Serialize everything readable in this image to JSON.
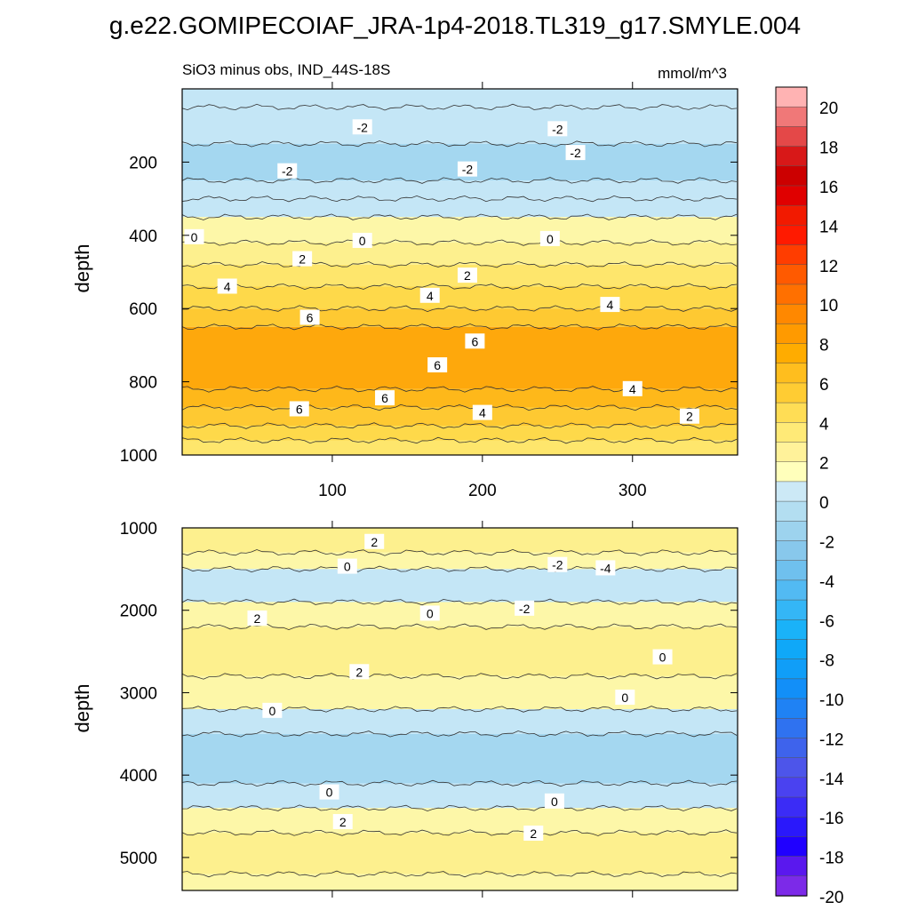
{
  "title": "g.e22.GOMIPECOIAF_JRA-1p4-2018.TL319_g17.SMYLE.004",
  "chart_data": [
    {
      "type": "heatmap",
      "subtitle": "SiO3 minus obs, IND_44S-18S",
      "units": "mmol/m^3",
      "xlabel": "",
      "ylabel": "depth",
      "xlim": [
        0,
        370
      ],
      "ylim": [
        1000,
        0
      ],
      "xticks": [
        "100",
        "200",
        "300"
      ],
      "yticks": [
        "200",
        "400",
        "600",
        "800",
        "1000"
      ],
      "bands": [
        {
          "top": 0,
          "bottom": 50,
          "value": -1
        },
        {
          "top": 50,
          "bottom": 150,
          "value": -1
        },
        {
          "top": 150,
          "bottom": 250,
          "value": -2
        },
        {
          "top": 250,
          "bottom": 300,
          "value": -1
        },
        {
          "top": 300,
          "bottom": 350,
          "value": -0.5
        },
        {
          "top": 350,
          "bottom": 420,
          "value": 0.5
        },
        {
          "top": 420,
          "bottom": 480,
          "value": 1.5
        },
        {
          "top": 480,
          "bottom": 540,
          "value": 2.5
        },
        {
          "top": 540,
          "bottom": 600,
          "value": 3.5
        },
        {
          "top": 600,
          "bottom": 650,
          "value": 4.5
        },
        {
          "top": 650,
          "bottom": 820,
          "value": 6.5
        },
        {
          "top": 820,
          "bottom": 870,
          "value": 5.5
        },
        {
          "top": 870,
          "bottom": 920,
          "value": 4.5
        },
        {
          "top": 920,
          "bottom": 960,
          "value": 3.5
        },
        {
          "top": 960,
          "bottom": 1000,
          "value": 2.5
        }
      ],
      "contour_labels": [
        {
          "x": 120,
          "y": 105,
          "text": "-2"
        },
        {
          "x": 250,
          "y": 110,
          "text": "-2"
        },
        {
          "x": 70,
          "y": 225,
          "text": "-2"
        },
        {
          "x": 190,
          "y": 220,
          "text": "-2"
        },
        {
          "x": 262,
          "y": 175,
          "text": "-2"
        },
        {
          "x": 8,
          "y": 405,
          "text": "0"
        },
        {
          "x": 120,
          "y": 415,
          "text": "0"
        },
        {
          "x": 245,
          "y": 410,
          "text": "0"
        },
        {
          "x": 80,
          "y": 465,
          "text": "2"
        },
        {
          "x": 190,
          "y": 510,
          "text": "2"
        },
        {
          "x": 30,
          "y": 540,
          "text": "4"
        },
        {
          "x": 165,
          "y": 565,
          "text": "4"
        },
        {
          "x": 285,
          "y": 590,
          "text": "4"
        },
        {
          "x": 85,
          "y": 625,
          "text": "6"
        },
        {
          "x": 195,
          "y": 690,
          "text": "6"
        },
        {
          "x": 170,
          "y": 755,
          "text": "6"
        },
        {
          "x": 135,
          "y": 845,
          "text": "6"
        },
        {
          "x": 78,
          "y": 875,
          "text": "6"
        },
        {
          "x": 200,
          "y": 885,
          "text": "4"
        },
        {
          "x": 300,
          "y": 820,
          "text": "4"
        },
        {
          "x": 338,
          "y": 895,
          "text": "2"
        }
      ]
    },
    {
      "type": "heatmap",
      "xlabel": "",
      "ylabel": "depth",
      "xlim": [
        0,
        370
      ],
      "ylim": [
        5400,
        1000
      ],
      "yticks": [
        "1000",
        "2000",
        "3000",
        "4000",
        "5000"
      ],
      "bands": [
        {
          "top": 1000,
          "bottom": 1300,
          "value": 1.5
        },
        {
          "top": 1300,
          "bottom": 1500,
          "value": 0.5
        },
        {
          "top": 1500,
          "bottom": 1900,
          "value": -0.5
        },
        {
          "top": 1900,
          "bottom": 2200,
          "value": 0.5
        },
        {
          "top": 2200,
          "bottom": 2800,
          "value": 1.5
        },
        {
          "top": 2800,
          "bottom": 3200,
          "value": 0.5
        },
        {
          "top": 3200,
          "bottom": 3500,
          "value": -0.5
        },
        {
          "top": 3500,
          "bottom": 4100,
          "value": -1.5
        },
        {
          "top": 4100,
          "bottom": 4400,
          "value": -0.5
        },
        {
          "top": 4400,
          "bottom": 4700,
          "value": 0.5
        },
        {
          "top": 4700,
          "bottom": 5200,
          "value": 1.5
        },
        {
          "top": 5200,
          "bottom": 5400,
          "value": 0.5
        }
      ],
      "contour_labels": [
        {
          "x": 128,
          "y": 1170,
          "text": "2"
        },
        {
          "x": 110,
          "y": 1470,
          "text": "0"
        },
        {
          "x": 250,
          "y": 1450,
          "text": "-2"
        },
        {
          "x": 282,
          "y": 1490,
          "text": "-4"
        },
        {
          "x": 228,
          "y": 1980,
          "text": "-2"
        },
        {
          "x": 165,
          "y": 2040,
          "text": "0"
        },
        {
          "x": 50,
          "y": 2100,
          "text": "2"
        },
        {
          "x": 118,
          "y": 2750,
          "text": "2"
        },
        {
          "x": 320,
          "y": 2570,
          "text": "0"
        },
        {
          "x": 295,
          "y": 3060,
          "text": "0"
        },
        {
          "x": 60,
          "y": 3220,
          "text": "0"
        },
        {
          "x": 98,
          "y": 4210,
          "text": "0"
        },
        {
          "x": 248,
          "y": 4320,
          "text": "0"
        },
        {
          "x": 107,
          "y": 4570,
          "text": "2"
        },
        {
          "x": 234,
          "y": 4710,
          "text": "2"
        }
      ]
    }
  ],
  "colorbar": {
    "labels": [
      "20",
      "18",
      "16",
      "14",
      "12",
      "10",
      "8",
      "6",
      "4",
      "2",
      "0",
      "-2",
      "-4",
      "-6",
      "-8",
      "-10",
      "-12",
      "-14",
      "-16",
      "-18",
      "-20"
    ],
    "colors": [
      "#ffb3b3",
      "#f07878",
      "#e44848",
      "#d81818",
      "#cc0000",
      "#e00000",
      "#f21a00",
      "#ff1a00",
      "#ff3d00",
      "#ff5a00",
      "#ff7000",
      "#ff8800",
      "#ff9a00",
      "#ffac00",
      "#ffbe1e",
      "#ffcc33",
      "#ffdd55",
      "#ffea77",
      "#fff29a",
      "#ffffbb",
      "#cce9f6",
      "#b3def1",
      "#9dd3ee",
      "#88c8ec",
      "#6fc0ee",
      "#52baf3",
      "#34b6f6",
      "#1ab2f8",
      "#0fa8f8",
      "#109ef8",
      "#128ff8",
      "#1f82f4",
      "#2f72f0",
      "#3e63ec",
      "#4d55ea",
      "#4a42f0",
      "#3b2cf6",
      "#2a18fb",
      "#2000ff",
      "#5a18ee",
      "#7c2ae8"
    ]
  }
}
